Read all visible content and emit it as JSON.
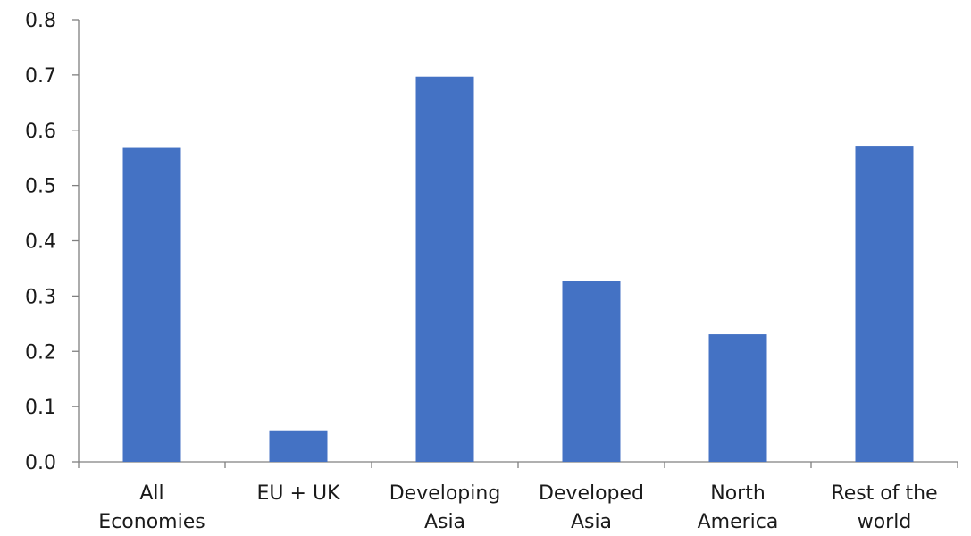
{
  "chart_data": {
    "type": "bar",
    "categories": [
      [
        "All",
        "Economies"
      ],
      [
        "EU + UK"
      ],
      [
        "Developing",
        "Asia"
      ],
      [
        "Developed",
        "Asia"
      ],
      [
        "North",
        "America"
      ],
      [
        "Rest of the",
        "world"
      ]
    ],
    "values": [
      0.568,
      0.057,
      0.697,
      0.328,
      0.231,
      0.572
    ],
    "ylim": [
      0,
      0.8
    ],
    "yticks": [
      "0.0",
      "0.1",
      "0.2",
      "0.3",
      "0.4",
      "0.5",
      "0.6",
      "0.7",
      "0.8"
    ],
    "title": "",
    "xlabel": "",
    "ylabel": "",
    "grid": false,
    "legend": "none",
    "colors": {
      "bar": "#4472C4",
      "axis": "#808080",
      "text": "#1a1a1a"
    }
  }
}
